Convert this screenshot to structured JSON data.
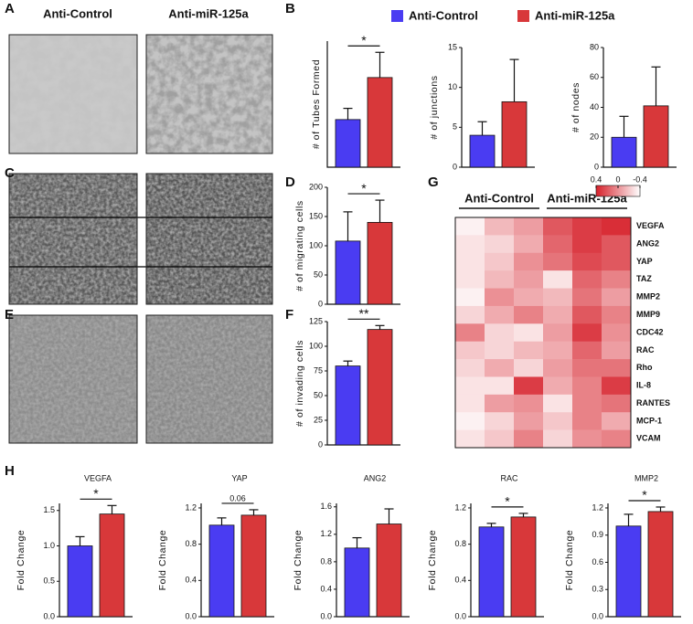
{
  "panel_labels": [
    "A",
    "B",
    "C",
    "D",
    "E",
    "F",
    "G",
    "H"
  ],
  "image_columns": [
    "Anti-Control",
    "Anti-miR-125a"
  ],
  "legend": [
    {
      "name": "Anti-Control",
      "color": "#4a3cf2"
    },
    {
      "name": "Anti-miR-125a",
      "color": "#d8383a"
    }
  ],
  "chart_data": [
    {
      "type": "bar",
      "ylabel": "# of Tubes Formed",
      "values": [
        34,
        64
      ],
      "errors": [
        8,
        18
      ],
      "ylim": [
        0,
        90
      ],
      "annotation": "*"
    },
    {
      "type": "bar",
      "ylabel": "# of junctions",
      "values": [
        4,
        8.2
      ],
      "errors": [
        1.7,
        5.3
      ],
      "ylim": [
        0,
        15
      ],
      "yticks": [
        0,
        5,
        10,
        15
      ]
    },
    {
      "type": "bar",
      "ylabel": "# of nodes",
      "values": [
        20,
        41
      ],
      "errors": [
        14,
        26
      ],
      "ylim": [
        0,
        80
      ],
      "yticks": [
        0,
        20,
        40,
        60,
        80
      ]
    },
    {
      "type": "bar",
      "ylabel": "# of migrating cells",
      "values": [
        108,
        140
      ],
      "errors": [
        50,
        38
      ],
      "ylim": [
        0,
        200
      ],
      "yticks": [
        0,
        50,
        100,
        150,
        200
      ],
      "annotation": "*"
    },
    {
      "type": "bar",
      "ylabel": "# of invading cells",
      "values": [
        80,
        117
      ],
      "errors": [
        5,
        4
      ],
      "ylim": [
        0,
        125
      ],
      "yticks": [
        0,
        25,
        50,
        75,
        100,
        125
      ],
      "annotation": "**"
    },
    {
      "type": "bar",
      "title": "VEGFA",
      "ylabel": "Fold Change",
      "values": [
        1.0,
        1.45
      ],
      "errors": [
        0.13,
        0.12
      ],
      "ylim": [
        0,
        1.6
      ],
      "yticks": [
        {
          "value": 0,
          "label": "0.0"
        },
        0.5,
        {
          "value": 1,
          "label": "1.0"
        },
        1.5
      ],
      "annotation": "*"
    },
    {
      "type": "bar",
      "title": "YAP",
      "ylabel": "Fold Change",
      "values": [
        1.01,
        1.12
      ],
      "errors": [
        0.08,
        0.06
      ],
      "ylim": [
        0,
        1.25
      ],
      "yticks": [
        {
          "value": 0,
          "label": "0.0"
        },
        0.4,
        0.8,
        1.2
      ],
      "annotation": "0.06"
    },
    {
      "type": "bar",
      "title": "ANG2",
      "ylabel": "Fold Change",
      "values": [
        1.0,
        1.35
      ],
      "errors": [
        0.15,
        0.22
      ],
      "ylim": [
        0,
        1.65
      ],
      "yticks": [
        {
          "value": 0,
          "label": "0.0"
        },
        0.4,
        0.8,
        1.2,
        1.6
      ]
    },
    {
      "type": "bar",
      "title": "RAC",
      "ylabel": "Fold Change",
      "values": [
        0.99,
        1.1
      ],
      "errors": [
        0.04,
        0.04
      ],
      "ylim": [
        0,
        1.25
      ],
      "yticks": [
        {
          "value": 0,
          "label": "0.0"
        },
        0.4,
        0.8,
        1.2
      ],
      "annotation": "*"
    },
    {
      "type": "bar",
      "title": "MMP2",
      "ylabel": "Fold Change",
      "values": [
        1.0,
        1.16
      ],
      "errors": [
        0.13,
        0.05
      ],
      "ylim": [
        0,
        1.25
      ],
      "yticks": [
        {
          "value": 0,
          "label": "0.0"
        },
        0.3,
        0.6,
        0.9,
        1.2
      ],
      "annotation": "*"
    },
    {
      "type": "heatmap",
      "groups": [
        "Anti-Control",
        "Anti-miR-125a"
      ],
      "rows": [
        "VEGFA",
        "ANG2",
        "YAP",
        "TAZ",
        "MMP2",
        "MMP9",
        "CDC42",
        "RAC",
        "Rho",
        "IL-8",
        "RANTES",
        "MCP-1",
        "VCAM"
      ],
      "values": [
        [
          -0.35,
          -0.15,
          -0.05,
          0.2,
          0.3,
          0.35
        ],
        [
          -0.3,
          -0.25,
          -0.1,
          0.15,
          0.3,
          0.2
        ],
        [
          -0.3,
          -0.2,
          0,
          0.1,
          0.25,
          0.2
        ],
        [
          -0.3,
          -0.15,
          -0.05,
          -0.3,
          0.15,
          0.05
        ],
        [
          -0.35,
          0,
          -0.1,
          -0.15,
          0.1,
          -0.05
        ],
        [
          -0.25,
          -0.1,
          0.05,
          -0.1,
          0.2,
          0.05
        ],
        [
          0.05,
          -0.25,
          -0.3,
          -0.05,
          0.3,
          0
        ],
        [
          -0.2,
          -0.25,
          -0.15,
          -0.1,
          0.15,
          -0.05
        ],
        [
          -0.25,
          -0.1,
          -0.25,
          -0.05,
          0.1,
          0.1
        ],
        [
          -0.3,
          -0.3,
          0.3,
          -0.1,
          0.05,
          0.3
        ],
        [
          -0.3,
          -0.05,
          0,
          -0.3,
          0.05,
          0.1
        ],
        [
          -0.35,
          -0.25,
          -0.05,
          -0.2,
          0.05,
          -0.1
        ],
        [
          -0.3,
          -0.2,
          0.05,
          -0.25,
          0,
          0.05
        ]
      ],
      "clim": [
        -0.4,
        0.4
      ],
      "cticks": [
        0.4,
        0,
        -0.4
      ],
      "low_color": "#ffffff",
      "high_color": "#d6202a"
    }
  ]
}
